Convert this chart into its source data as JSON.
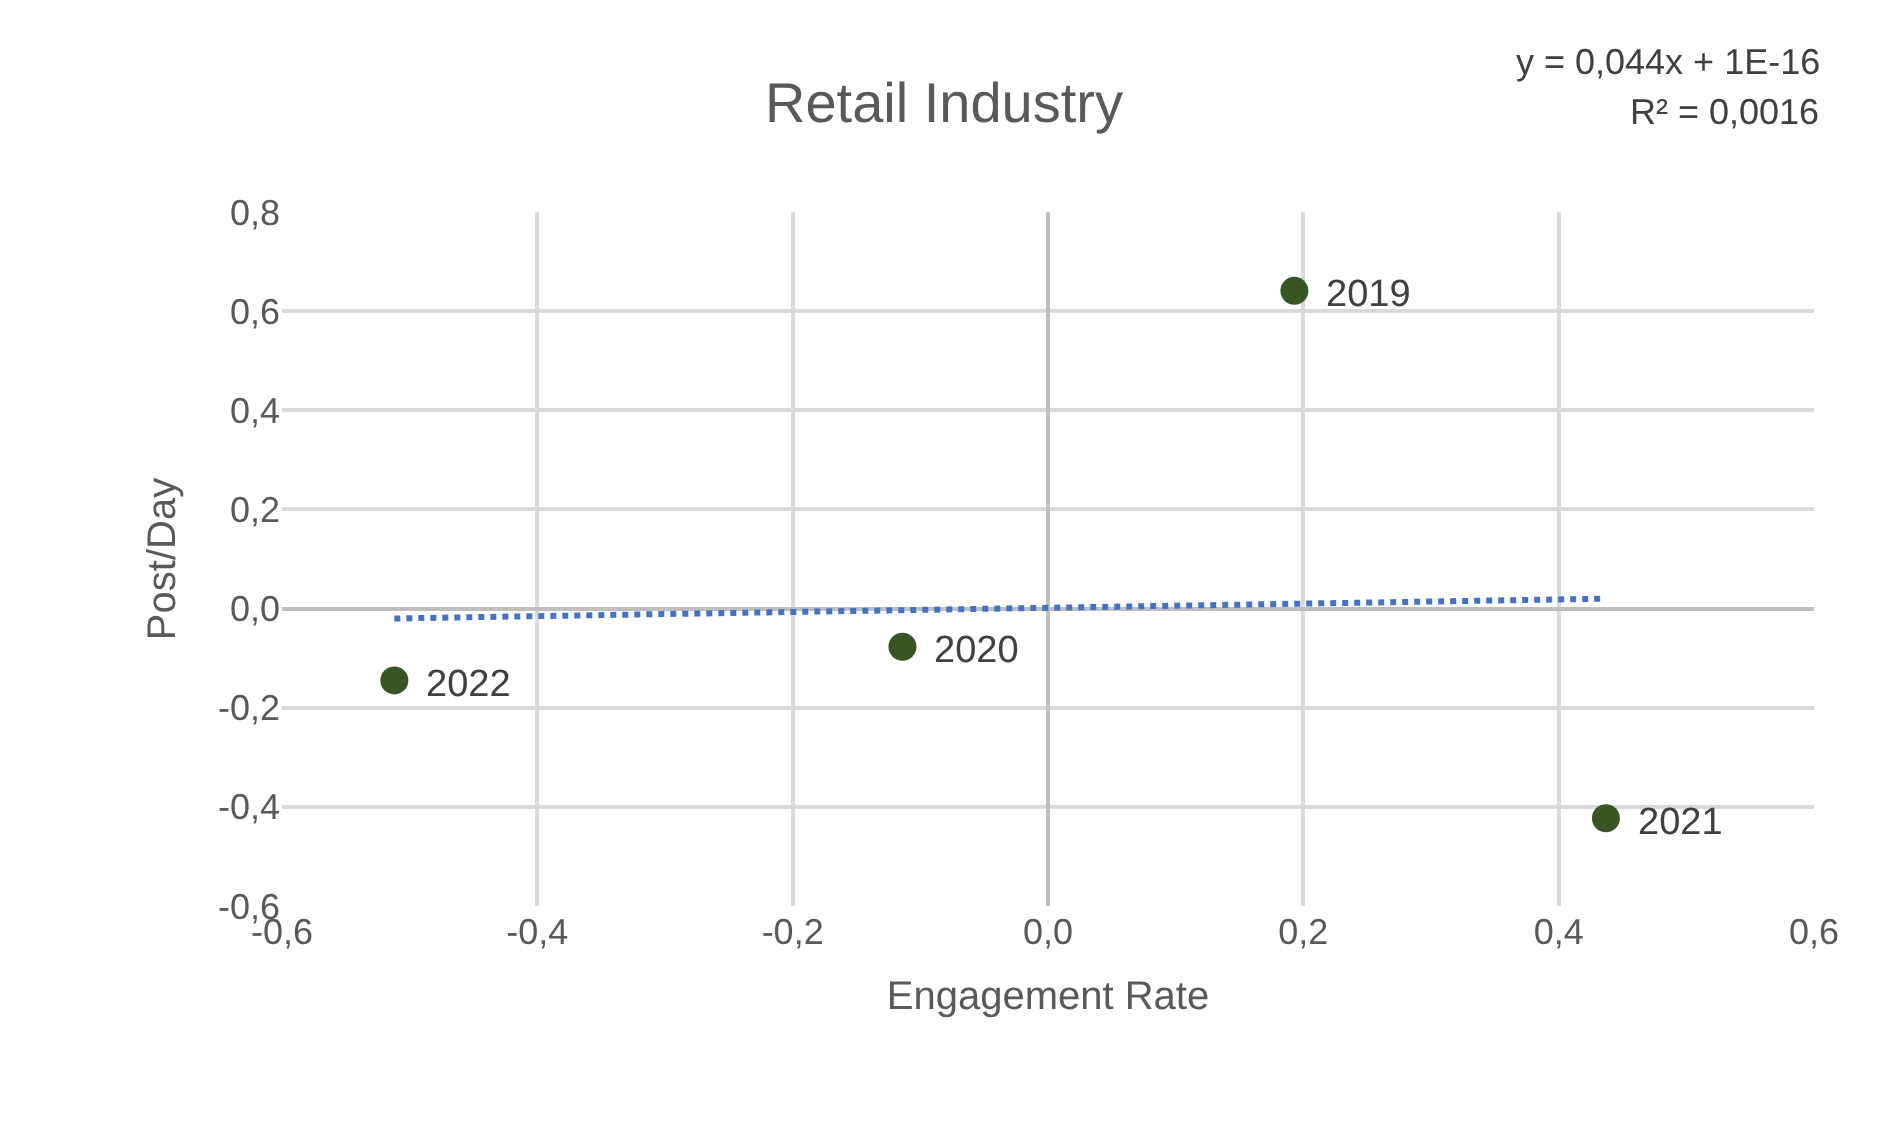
{
  "chart_data": {
    "type": "scatter",
    "title": "Retail Industry",
    "xlabel": "Engagement Rate",
    "ylabel": "Post/Day",
    "x": [
      0.193,
      -0.114,
      0.437,
      -0.512
    ],
    "series": [
      {
        "color": "#375623",
        "values": [
          0.641,
          -0.077,
          -0.423,
          -0.145
        ],
        "marker": "circle"
      },
      {
        "type": "line",
        "color": "#4472c4",
        "x": [
          -0.512,
          0.437
        ],
        "values": [
          -0.02,
          0.02
        ],
        "line_style": "dotted",
        "marker": "none"
      }
    ],
    "annotations": [
      {
        "text": "2019",
        "x": 0.193,
        "y": 0.641
      },
      {
        "text": "2020",
        "x": -0.114,
        "y": -0.077
      },
      {
        "text": "2021",
        "x": 0.437,
        "y": -0.423
      },
      {
        "text": "2022",
        "x": -0.512,
        "y": -0.145
      },
      "y = 0,044x + 1E-16",
      "R² = 0,0016"
    ],
    "xlim": [
      -0.6,
      0.6
    ],
    "xticks": [
      {
        "value": -0.6,
        "label": "-0,6"
      },
      {
        "value": -0.4,
        "label": "-0,4"
      },
      {
        "value": -0.2,
        "label": "-0,2"
      },
      {
        "value": 0,
        "label": "0,0"
      },
      {
        "value": 0.2,
        "label": "0,2"
      },
      {
        "value": 0.4,
        "label": "0,4"
      },
      {
        "value": 0.6,
        "label": "0,6"
      }
    ],
    "ylim": [
      -0.6,
      0.8
    ],
    "yticks": [
      {
        "value": -0.6,
        "label": "-0,6"
      },
      {
        "value": -0.4,
        "label": "-0,4"
      },
      {
        "value": -0.2,
        "label": "-0,2"
      },
      {
        "value": 0,
        "label": "0,0"
      },
      {
        "value": 0.2,
        "label": "0,2"
      },
      {
        "value": 0.4,
        "label": "0,4"
      },
      {
        "value": 0.6,
        "label": "0,6"
      },
      {
        "value": 0.8,
        "label": "0,8"
      }
    ],
    "grid": true
  }
}
